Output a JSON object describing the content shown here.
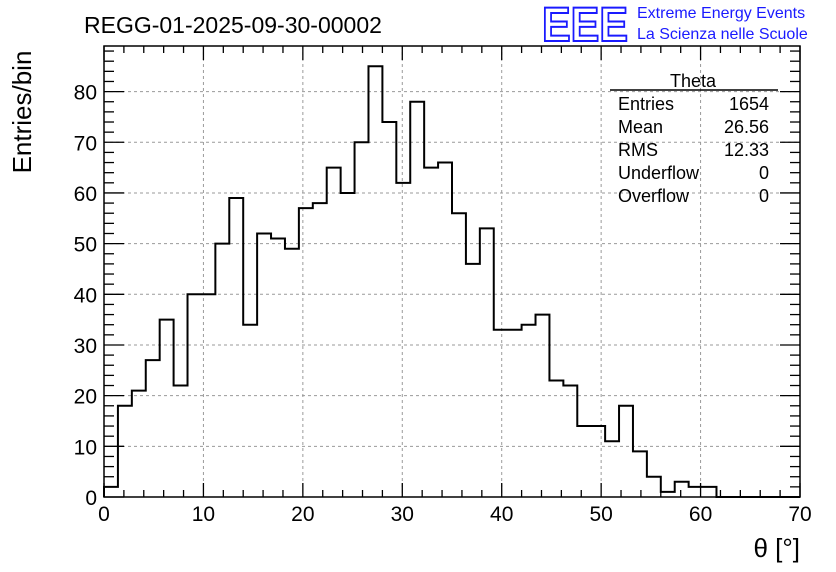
{
  "chart_data": {
    "type": "bar",
    "histogram": true,
    "title": "REGG-01-2025-09-30-00002",
    "xlabel": "θ [°]",
    "ylabel": "Entries/bin",
    "xlim": [
      0,
      70
    ],
    "ylim": [
      0,
      89
    ],
    "grid": true,
    "bin_width": 1.4,
    "x_ticks": [
      0,
      10,
      20,
      30,
      40,
      50,
      60,
      70
    ],
    "y_ticks": [
      0,
      10,
      20,
      30,
      40,
      50,
      60,
      70,
      80
    ],
    "values": [
      2,
      18,
      21,
      27,
      35,
      22,
      40,
      40,
      50,
      59,
      34,
      52,
      51,
      49,
      57,
      58,
      65,
      60,
      70,
      85,
      74,
      62,
      78,
      65,
      66,
      56,
      46,
      53,
      33,
      33,
      34,
      36,
      23,
      22,
      14,
      14,
      11,
      18,
      9,
      4,
      1,
      3,
      2,
      2,
      0,
      0,
      0,
      0,
      0,
      0
    ],
    "stats_box": {
      "name": "Theta",
      "rows": [
        {
          "label": "Entries",
          "value": "1654"
        },
        {
          "label": "Mean",
          "value": "26.56"
        },
        {
          "label": "RMS",
          "value": "12.33"
        },
        {
          "label": "Underflow",
          "value": "0"
        },
        {
          "label": "Overflow",
          "value": "0"
        }
      ]
    }
  },
  "logo": {
    "mark": "EEE",
    "line1": "Extreme Energy Events",
    "line2": "La Scienza nelle Scuole",
    "color": "#1a1aff"
  }
}
